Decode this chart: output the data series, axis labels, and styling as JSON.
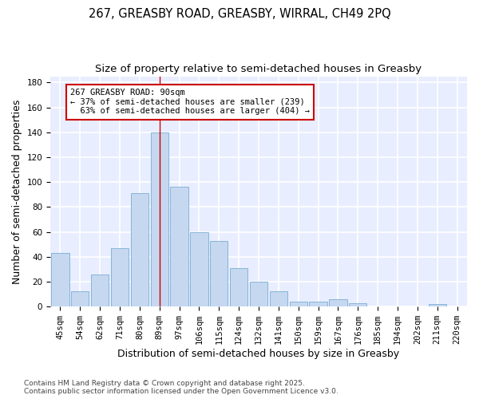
{
  "title_line1": "267, GREASBY ROAD, GREASBY, WIRRAL, CH49 2PQ",
  "title_line2": "Size of property relative to semi-detached houses in Greasby",
  "xlabel": "Distribution of semi-detached houses by size in Greasby",
  "ylabel": "Number of semi-detached properties",
  "categories": [
    "45sqm",
    "54sqm",
    "62sqm",
    "71sqm",
    "80sqm",
    "89sqm",
    "97sqm",
    "106sqm",
    "115sqm",
    "124sqm",
    "132sqm",
    "141sqm",
    "150sqm",
    "159sqm",
    "167sqm",
    "176sqm",
    "185sqm",
    "194sqm",
    "202sqm",
    "211sqm",
    "220sqm"
  ],
  "values": [
    43,
    12,
    26,
    47,
    91,
    140,
    96,
    60,
    53,
    31,
    20,
    12,
    4,
    4,
    6,
    3,
    0,
    0,
    0,
    2,
    0
  ],
  "bar_color": "#c5d8f0",
  "bar_edge_color": "#7aadd4",
  "background_color": "#e8eeff",
  "grid_color": "#ffffff",
  "vline_x_index": 5,
  "vline_color": "#cc0000",
  "annotation_text": "267 GREASBY ROAD: 90sqm\n← 37% of semi-detached houses are smaller (239)\n  63% of semi-detached houses are larger (404) →",
  "annotation_box_color": "#ffffff",
  "annotation_box_edge": "#cc0000",
  "ylim": [
    0,
    185
  ],
  "yticks": [
    0,
    20,
    40,
    60,
    80,
    100,
    120,
    140,
    160,
    180
  ],
  "footer_text": "Contains HM Land Registry data © Crown copyright and database right 2025.\nContains public sector information licensed under the Open Government Licence v3.0.",
  "title_fontsize": 10.5,
  "subtitle_fontsize": 9.5,
  "axis_label_fontsize": 9,
  "tick_fontsize": 7.5,
  "annotation_fontsize": 7.5,
  "footer_fontsize": 6.5
}
